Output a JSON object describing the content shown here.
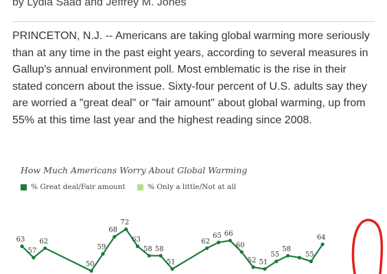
{
  "article": {
    "byline": "by Lydia Saad and Jeffrey M. Jones",
    "body": "PRINCETON, N.J. -- Americans are taking global warming more seriously than at any time in the past eight years, according to several measures in Gallup's annual environment poll. Most emblematic is the rise in their stated concern about the issue. Sixty-four percent of U.S. adults say they are worried a \"great deal\" or \"fair amount\" about global warming, up from 55% at this time last year and the highest reading since 2008."
  },
  "colors": {
    "series_dark": "#1a7a3a",
    "series_light": "#b5e08a",
    "annotation": "#e0201b"
  },
  "chart_data": {
    "type": "line",
    "title": "How Much Americans Worry About Global Warming",
    "legend": [
      "% Great deal/Fair amount",
      "% Only a little/Not at all"
    ],
    "legend_placement": "top-left",
    "series": [
      {
        "name": "% Great deal/Fair amount",
        "points": [
          {
            "x": 1,
            "y": 63
          },
          {
            "x": 2,
            "y": 57
          },
          {
            "x": 3,
            "y": 62
          },
          {
            "x": 7,
            "y": 50
          },
          {
            "x": 8,
            "y": 59
          },
          {
            "x": 9,
            "y": 68
          },
          {
            "x": 10,
            "y": 72
          },
          {
            "x": 11,
            "y": 63
          },
          {
            "x": 12,
            "y": 58
          },
          {
            "x": 13,
            "y": 58
          },
          {
            "x": 14,
            "y": 51
          },
          {
            "x": 17,
            "y": 62
          },
          {
            "x": 18,
            "y": 65
          },
          {
            "x": 19,
            "y": 66
          },
          {
            "x": 20,
            "y": 60
          },
          {
            "x": 21,
            "y": 52
          },
          {
            "x": 22,
            "y": 51
          },
          {
            "x": 23,
            "y": 55
          },
          {
            "x": 24,
            "y": 58
          },
          {
            "x": 25,
            "y": 57
          },
          {
            "x": 26,
            "y": 55
          },
          {
            "x": 27,
            "y": 64
          }
        ],
        "labels": [
          "63",
          "57",
          "62",
          "50",
          "59",
          "68",
          "72",
          "63",
          "58",
          "58",
          "51",
          "62",
          "65",
          "66",
          "60",
          "52",
          "51",
          "55",
          "58",
          "",
          "55",
          "64"
        ]
      }
    ]
  }
}
